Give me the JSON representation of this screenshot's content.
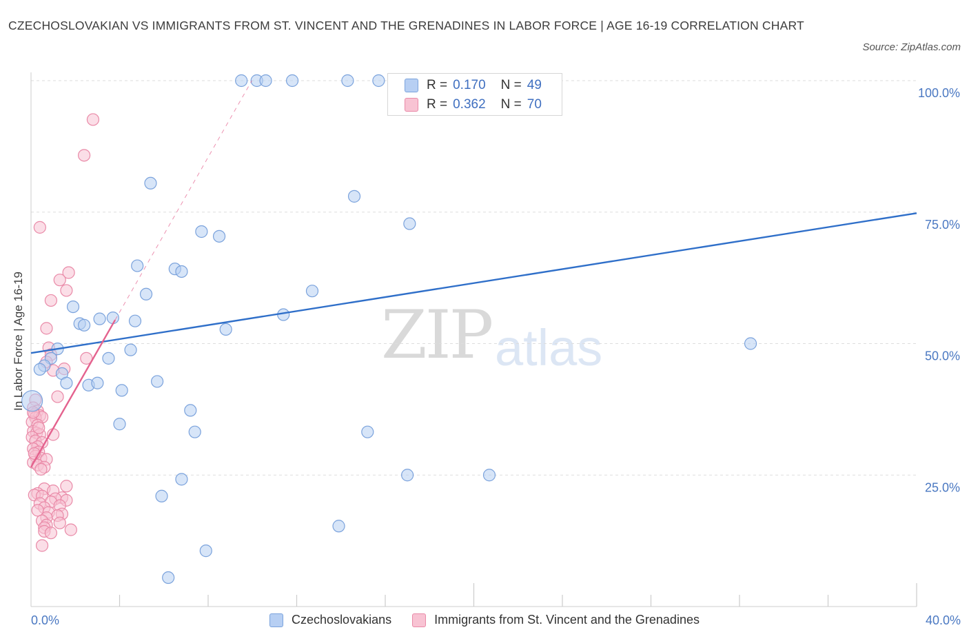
{
  "header": {
    "title": "CZECHOSLOVAKIAN VS IMMIGRANTS FROM ST. VINCENT AND THE GRENADINES IN LABOR FORCE | AGE 16-19 CORRELATION CHART",
    "source": "Source: ZipAtlas.com"
  },
  "watermark": {
    "zip": "ZIP",
    "atlas": "atlas"
  },
  "legend": {
    "r_label": "R =",
    "n_label": "N =",
    "series": [
      {
        "r": "0.170",
        "n": "49"
      },
      {
        "r": "0.362",
        "n": "70"
      }
    ]
  },
  "colors": {
    "blue_fill": "#b7cff3",
    "blue_stroke": "#7aa2dc",
    "blue_line": "#2f6fc9",
    "pink_fill": "#f8c3d3",
    "pink_stroke": "#e989a7",
    "pink_line": "#e4628e",
    "tick_text": "#4a78c2",
    "grid": "#dddddd"
  },
  "chart_data": {
    "type": "scatter",
    "title": "CZECHOSLOVAKIAN VS IMMIGRANTS FROM ST. VINCENT AND THE GRENADINES IN LABOR FORCE | AGE 16-19 CORRELATION CHART",
    "ylabel": "In Labor Force | Age 16-19",
    "xlim": [
      0,
      40
    ],
    "ylim": [
      0,
      100
    ],
    "x_tick_labels": [
      "0.0%",
      "40.0%"
    ],
    "y_tick_labels": [
      "25.0%",
      "50.0%",
      "75.0%",
      "100.0%"
    ],
    "y_ticks": [
      25,
      50,
      75,
      100
    ],
    "grid": true,
    "legend_position": "top-center",
    "series": [
      {
        "name": "Czechoslovakians",
        "color": "#b7cff3",
        "trend": {
          "x": [
            0,
            40
          ],
          "y": [
            48.2,
            74.8
          ]
        },
        "points": [
          {
            "x": 9.5,
            "y": 100
          },
          {
            "x": 10.2,
            "y": 100
          },
          {
            "x": 10.6,
            "y": 100
          },
          {
            "x": 11.8,
            "y": 100
          },
          {
            "x": 14.3,
            "y": 100
          },
          {
            "x": 15.7,
            "y": 100
          },
          {
            "x": 5.4,
            "y": 80.5
          },
          {
            "x": 14.6,
            "y": 78
          },
          {
            "x": 17.1,
            "y": 72.8
          },
          {
            "x": 7.7,
            "y": 71.3
          },
          {
            "x": 8.5,
            "y": 70.4
          },
          {
            "x": 4.8,
            "y": 64.8
          },
          {
            "x": 6.5,
            "y": 64.2
          },
          {
            "x": 6.8,
            "y": 63.7
          },
          {
            "x": 5.2,
            "y": 59.4
          },
          {
            "x": 12.7,
            "y": 60
          },
          {
            "x": 1.9,
            "y": 57
          },
          {
            "x": 11.4,
            "y": 55.5
          },
          {
            "x": 3.1,
            "y": 54.7
          },
          {
            "x": 3.7,
            "y": 54.9
          },
          {
            "x": 2.2,
            "y": 53.8
          },
          {
            "x": 2.4,
            "y": 53.5
          },
          {
            "x": 4.7,
            "y": 54.3
          },
          {
            "x": 8.8,
            "y": 52.7
          },
          {
            "x": 32.5,
            "y": 50
          },
          {
            "x": 1.2,
            "y": 49
          },
          {
            "x": 4.5,
            "y": 48.8
          },
          {
            "x": 3.5,
            "y": 47.2
          },
          {
            "x": 0.9,
            "y": 47.2
          },
          {
            "x": 0.6,
            "y": 45.8
          },
          {
            "x": 0.4,
            "y": 45.1
          },
          {
            "x": 1.4,
            "y": 44.3
          },
          {
            "x": 5.7,
            "y": 42.8
          },
          {
            "x": 1.6,
            "y": 42.5
          },
          {
            "x": 2.6,
            "y": 42.1
          },
          {
            "x": 3.0,
            "y": 42.5
          },
          {
            "x": 4.1,
            "y": 41.1
          },
          {
            "x": 0.05,
            "y": 39.1
          },
          {
            "x": 7.2,
            "y": 37.3
          },
          {
            "x": 4.0,
            "y": 34.7
          },
          {
            "x": 7.4,
            "y": 33.2
          },
          {
            "x": 15.2,
            "y": 33.2
          },
          {
            "x": 17.0,
            "y": 25
          },
          {
            "x": 20.7,
            "y": 25
          },
          {
            "x": 6.8,
            "y": 24.2
          },
          {
            "x": 5.9,
            "y": 21
          },
          {
            "x": 13.9,
            "y": 15.3
          },
          {
            "x": 7.9,
            "y": 10.6
          },
          {
            "x": 6.2,
            "y": 5.5
          }
        ]
      },
      {
        "name": "Immigrants from St. Vincent and the Grenadines",
        "color": "#f8c3d3",
        "trend": {
          "x": [
            0,
            3.8
          ],
          "y": [
            26.5,
            54.5
          ]
        },
        "points": [
          {
            "x": 2.8,
            "y": 92.6
          },
          {
            "x": 2.4,
            "y": 85.8
          },
          {
            "x": 0.4,
            "y": 72.1
          },
          {
            "x": 1.7,
            "y": 63.5
          },
          {
            "x": 1.3,
            "y": 62.1
          },
          {
            "x": 1.6,
            "y": 60.1
          },
          {
            "x": 0.9,
            "y": 58.2
          },
          {
            "x": 0.7,
            "y": 52.9
          },
          {
            "x": 0.8,
            "y": 49.2
          },
          {
            "x": 0.9,
            "y": 47.9
          },
          {
            "x": 2.5,
            "y": 47.2
          },
          {
            "x": 0.7,
            "y": 46.5
          },
          {
            "x": 1.5,
            "y": 45.2
          },
          {
            "x": 1.0,
            "y": 44.9
          },
          {
            "x": 1.2,
            "y": 39.9
          },
          {
            "x": 0.2,
            "y": 39.3
          },
          {
            "x": 0.1,
            "y": 37.8
          },
          {
            "x": 0.3,
            "y": 37.2
          },
          {
            "x": 0.15,
            "y": 36.5
          },
          {
            "x": 0.4,
            "y": 36.3
          },
          {
            "x": 0.2,
            "y": 35.9
          },
          {
            "x": 0.5,
            "y": 36.0
          },
          {
            "x": 0.05,
            "y": 35.1
          },
          {
            "x": 0.3,
            "y": 34.5
          },
          {
            "x": 0.1,
            "y": 33.3
          },
          {
            "x": 0.25,
            "y": 33.0
          },
          {
            "x": 0.4,
            "y": 32.7
          },
          {
            "x": 1.0,
            "y": 32.7
          },
          {
            "x": 0.05,
            "y": 32.2
          },
          {
            "x": 0.2,
            "y": 31.5
          },
          {
            "x": 0.5,
            "y": 31.2
          },
          {
            "x": 0.3,
            "y": 30.4
          },
          {
            "x": 0.1,
            "y": 30.0
          },
          {
            "x": 0.35,
            "y": 29.4
          },
          {
            "x": 0.2,
            "y": 28.6
          },
          {
            "x": 0.45,
            "y": 28.2
          },
          {
            "x": 0.7,
            "y": 28.0
          },
          {
            "x": 0.1,
            "y": 27.4
          },
          {
            "x": 0.3,
            "y": 26.9
          },
          {
            "x": 0.6,
            "y": 26.5
          },
          {
            "x": 0.45,
            "y": 26.1
          },
          {
            "x": 1.6,
            "y": 22.9
          },
          {
            "x": 0.6,
            "y": 22.4
          },
          {
            "x": 1.0,
            "y": 22.0
          },
          {
            "x": 0.3,
            "y": 21.5
          },
          {
            "x": 0.15,
            "y": 21.2
          },
          {
            "x": 0.5,
            "y": 21.0
          },
          {
            "x": 1.4,
            "y": 20.7
          },
          {
            "x": 1.1,
            "y": 20.5
          },
          {
            "x": 1.6,
            "y": 20.2
          },
          {
            "x": 0.9,
            "y": 19.9
          },
          {
            "x": 0.4,
            "y": 19.6
          },
          {
            "x": 1.3,
            "y": 19.2
          },
          {
            "x": 0.6,
            "y": 18.8
          },
          {
            "x": 0.3,
            "y": 18.3
          },
          {
            "x": 0.8,
            "y": 17.9
          },
          {
            "x": 1.4,
            "y": 17.6
          },
          {
            "x": 1.2,
            "y": 17.3
          },
          {
            "x": 0.7,
            "y": 16.9
          },
          {
            "x": 0.5,
            "y": 16.3
          },
          {
            "x": 1.3,
            "y": 15.9
          },
          {
            "x": 0.7,
            "y": 15.5
          },
          {
            "x": 0.6,
            "y": 15.0
          },
          {
            "x": 1.8,
            "y": 14.6
          },
          {
            "x": 0.6,
            "y": 14.3
          },
          {
            "x": 0.9,
            "y": 14.0
          },
          {
            "x": 0.5,
            "y": 11.6
          },
          {
            "x": 0.1,
            "y": 36.9
          },
          {
            "x": 0.35,
            "y": 34.0
          },
          {
            "x": 0.15,
            "y": 29.1
          }
        ]
      }
    ]
  }
}
